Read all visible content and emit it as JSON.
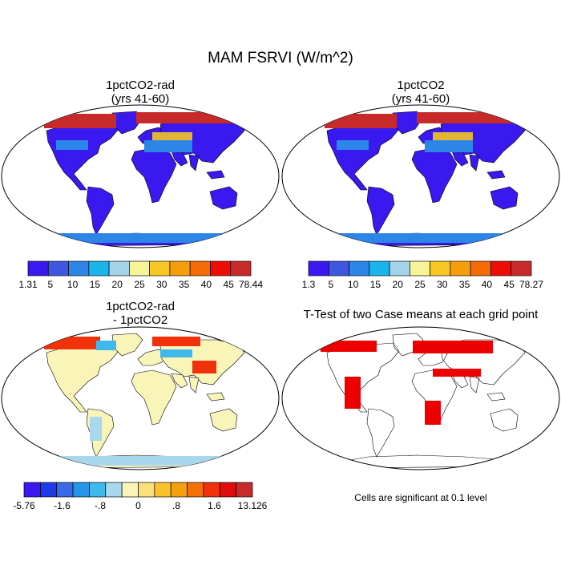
{
  "title": "MAM FSRVI (W/m^2)",
  "panels": [
    {
      "id": "p1",
      "title_line1": "1pctCO2-rad",
      "title_line2": "(yrs 41-60)",
      "type": "field"
    },
    {
      "id": "p2",
      "title_line1": "1pctCO2",
      "title_line2": "(yrs 41-60)",
      "type": "field"
    },
    {
      "id": "p3",
      "title_line1": "1pctCO2-rad",
      "title_line2": "- 1pctCO2",
      "type": "difference"
    },
    {
      "id": "p4",
      "title_line1": "T-Test of two Case means at each grid point",
      "type": "significance"
    }
  ],
  "colorbars": [
    {
      "id": "cb1",
      "colors": [
        "#3a18f0",
        "#3f57e0",
        "#2b86e8",
        "#1ab5ec",
        "#a2d3e8",
        "#f9f398",
        "#f6c722",
        "#f59d0a",
        "#f46b06",
        "#f00c06",
        "#c82a2a"
      ],
      "labels": [
        "1.31",
        "5",
        "10",
        "15",
        "20",
        "25",
        "30",
        "35",
        "40",
        "45",
        "78.44"
      ]
    },
    {
      "id": "cb2",
      "colors": [
        "#3a18f0",
        "#3f57e0",
        "#2b86e8",
        "#1ab5ec",
        "#a2d3e8",
        "#f9f398",
        "#f6c722",
        "#f59d0a",
        "#f46b06",
        "#f00c06",
        "#c82a2a"
      ],
      "labels": [
        "1.3",
        "5",
        "10",
        "15",
        "20",
        "25",
        "30",
        "35",
        "40",
        "45",
        "78.27"
      ]
    },
    {
      "id": "cb3",
      "colors": [
        "#3a18f0",
        "#1e3ae8",
        "#3a6ae8",
        "#2796e8",
        "#3fb8ec",
        "#a8d8ee",
        "#f9f5b8",
        "#fbe07a",
        "#f9c12c",
        "#f5a00f",
        "#f4700a",
        "#f0310a",
        "#e00c0c",
        "#c82a2a"
      ],
      "labels": [
        "-5.76",
        "-1.6",
        "-.8",
        "0",
        ".8",
        "1.6",
        "13.126"
      ]
    }
  ],
  "significance_color": "#ee0000",
  "footnote": "Cells are significant at 0.1 level"
}
